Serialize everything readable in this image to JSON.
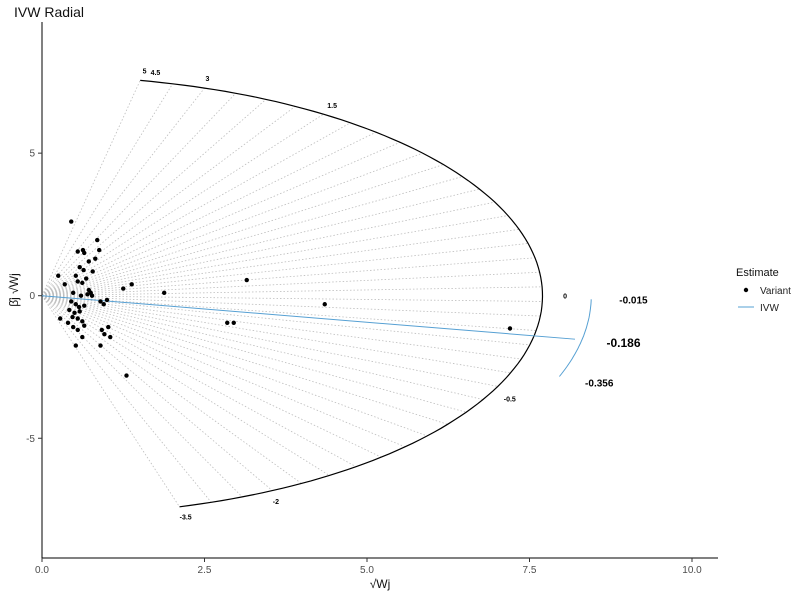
{
  "chart_data": {
    "type": "scatter",
    "title": "IVW Radial",
    "xlabel": "√Wj",
    "ylabel": "β̂j √Wj",
    "xlim": [
      0,
      10.4
    ],
    "ylim": [
      -9.2,
      9.6
    ],
    "xticks": [
      0,
      2.5,
      5,
      7.5,
      10
    ],
    "xtick_labels": [
      "0.0",
      "2.5",
      "5.0",
      "7.5",
      "10.0"
    ],
    "yticks": [
      -5,
      0,
      5
    ],
    "ytick_labels": [
      "-5",
      "0",
      "5"
    ],
    "grid": false,
    "legend": {
      "title": "Estimate",
      "position": "right",
      "entries": [
        {
          "label": "Variant",
          "kind": "point"
        },
        {
          "label": "IVW",
          "kind": "line"
        }
      ]
    },
    "colors": {
      "ivw": "#56a0d3",
      "points": "#000000",
      "ellipse": "#000000",
      "guides": "#bdbdbd"
    },
    "ivw_slope": -0.186,
    "ivw_line_x": [
      0,
      8.2
    ],
    "outer_arc": {
      "center": [
        0,
        0
      ],
      "rx": 7.7,
      "ry": 7.7,
      "slope_min": -3.5,
      "slope_max": 5
    },
    "arc_labels": [
      {
        "text": "5",
        "slope": 5
      },
      {
        "text": "4.5",
        "slope": 4.5
      },
      {
        "text": "3",
        "slope": 3
      },
      {
        "text": "1.5",
        "slope": 1.5
      },
      {
        "text": "0",
        "slope": 0
      },
      {
        "text": "-0.5",
        "slope": -0.5
      },
      {
        "text": "-2",
        "slope": -2
      },
      {
        "text": "-3.5",
        "slope": -3.5
      }
    ],
    "ivw_arc_labels": [
      {
        "text": "-0.015",
        "slope": -0.015,
        "size": 10
      },
      {
        "text": "-0.186",
        "slope": -0.186,
        "size": 12
      },
      {
        "text": "-0.356",
        "slope": -0.356,
        "size": 10
      }
    ],
    "ivw_arc": {
      "slope_min": -0.356,
      "slope_max": -0.015
    },
    "points": [
      {
        "x": 0.45,
        "y": 2.6
      },
      {
        "x": 0.55,
        "y": 1.55
      },
      {
        "x": 0.63,
        "y": 1.6
      },
      {
        "x": 0.65,
        "y": 1.5
      },
      {
        "x": 0.85,
        "y": 1.95
      },
      {
        "x": 0.88,
        "y": 1.6
      },
      {
        "x": 0.72,
        "y": 1.2
      },
      {
        "x": 0.82,
        "y": 1.3
      },
      {
        "x": 0.58,
        "y": 1.0
      },
      {
        "x": 0.64,
        "y": 0.9
      },
      {
        "x": 0.78,
        "y": 0.85
      },
      {
        "x": 0.68,
        "y": 0.6
      },
      {
        "x": 0.52,
        "y": 0.7
      },
      {
        "x": 0.25,
        "y": 0.7
      },
      {
        "x": 0.35,
        "y": 0.4
      },
      {
        "x": 0.55,
        "y": 0.5
      },
      {
        "x": 0.62,
        "y": 0.45
      },
      {
        "x": 0.72,
        "y": 0.2
      },
      {
        "x": 0.7,
        "y": 0.05
      },
      {
        "x": 0.75,
        "y": 0.1
      },
      {
        "x": 0.77,
        "y": 0.0
      },
      {
        "x": 0.48,
        "y": 0.1
      },
      {
        "x": 0.6,
        "y": 0.0
      },
      {
        "x": 0.45,
        "y": -0.2
      },
      {
        "x": 0.52,
        "y": -0.3
      },
      {
        "x": 0.57,
        "y": -0.4
      },
      {
        "x": 0.65,
        "y": -0.35
      },
      {
        "x": 0.42,
        "y": -0.5
      },
      {
        "x": 0.5,
        "y": -0.6
      },
      {
        "x": 0.58,
        "y": -0.55
      },
      {
        "x": 0.47,
        "y": -0.75
      },
      {
        "x": 0.55,
        "y": -0.8
      },
      {
        "x": 0.62,
        "y": -0.9
      },
      {
        "x": 0.4,
        "y": -0.95
      },
      {
        "x": 0.48,
        "y": -1.1
      },
      {
        "x": 0.55,
        "y": -1.2
      },
      {
        "x": 0.65,
        "y": -1.05
      },
      {
        "x": 0.28,
        "y": -0.8
      },
      {
        "x": 0.62,
        "y": -1.45
      },
      {
        "x": 0.52,
        "y": -1.75
      },
      {
        "x": 0.9,
        "y": -0.2
      },
      {
        "x": 0.95,
        "y": -0.3
      },
      {
        "x": 1.0,
        "y": -0.15
      },
      {
        "x": 0.92,
        "y": -1.2
      },
      {
        "x": 0.96,
        "y": -1.35
      },
      {
        "x": 1.02,
        "y": -1.1
      },
      {
        "x": 1.05,
        "y": -1.45
      },
      {
        "x": 0.9,
        "y": -1.75
      },
      {
        "x": 1.25,
        "y": 0.25
      },
      {
        "x": 1.38,
        "y": 0.4
      },
      {
        "x": 1.3,
        "y": -2.8
      },
      {
        "x": 1.88,
        "y": 0.1
      },
      {
        "x": 2.85,
        "y": -0.95
      },
      {
        "x": 2.95,
        "y": -0.95
      },
      {
        "x": 3.15,
        "y": 0.55
      },
      {
        "x": 4.35,
        "y": -0.3
      },
      {
        "x": 7.2,
        "y": -1.15
      }
    ]
  }
}
